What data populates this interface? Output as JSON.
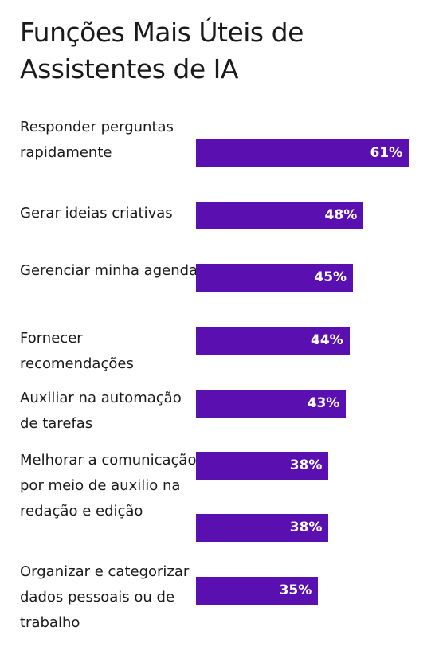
{
  "chart_data": {
    "type": "bar",
    "orientation": "horizontal",
    "title": "Funções Mais Úteis de Assistentes de IA",
    "categories": [
      "Responder perguntas rapidamente",
      "Gerar ideias criativas",
      "Gerenciar minha agenda",
      "Fornecer recomendações",
      "Auxiliar na automação de tarefas",
      "Melhorar a comunicação por meio de auxilio na redação e edição",
      null,
      "Organizar e categorizar dados pessoais ou de trabalho"
    ],
    "values": [
      61,
      48,
      45,
      44,
      43,
      38,
      38,
      35
    ],
    "value_labels": [
      "61%",
      "48%",
      "45%",
      "44%",
      "43%",
      "38%",
      "38%",
      "35%"
    ],
    "color": "#5a0fb0"
  }
}
